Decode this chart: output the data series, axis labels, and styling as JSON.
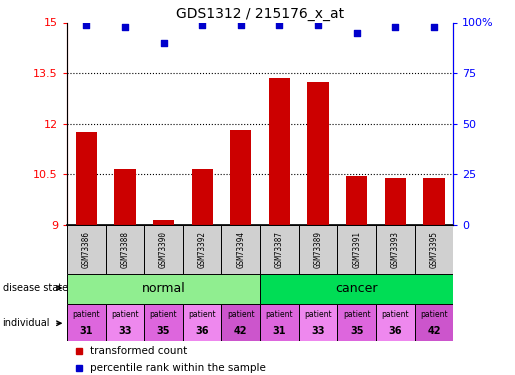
{
  "title": "GDS1312 / 215176_x_at",
  "samples": [
    "GSM73386",
    "GSM73388",
    "GSM73390",
    "GSM73392",
    "GSM73394",
    "GSM73387",
    "GSM73389",
    "GSM73391",
    "GSM73393",
    "GSM73395"
  ],
  "transformed_count": [
    11.75,
    10.65,
    9.15,
    10.65,
    11.8,
    13.35,
    13.25,
    10.45,
    10.4,
    10.4
  ],
  "percentile_rank": [
    99,
    98,
    90,
    99,
    99,
    99,
    99,
    95,
    98,
    98
  ],
  "ylim_left": [
    9,
    15
  ],
  "ylim_right": [
    0,
    100
  ],
  "yticks_left": [
    9,
    10.5,
    12,
    13.5,
    15
  ],
  "yticks_right": [
    0,
    25,
    50,
    75,
    100
  ],
  "bar_color": "#cc0000",
  "dot_color": "#0000cc",
  "disease_state_colors": [
    "#90ee90",
    "#00dd55"
  ],
  "individual_colors": [
    "#dd66dd",
    "#ee88ee",
    "#dd66dd",
    "#ee88ee",
    "#cc55cc",
    "#dd66dd",
    "#ee88ee",
    "#dd66dd",
    "#ee88ee",
    "#cc55cc"
  ],
  "individual_labels_top": [
    "patient",
    "patient",
    "patient",
    "patient",
    "patient",
    "patient",
    "patient",
    "patient",
    "patient",
    "patient"
  ],
  "individual_labels_bot": [
    "31",
    "33",
    "35",
    "36",
    "42",
    "31",
    "33",
    "35",
    "36",
    "42"
  ],
  "legend_red_label": "transformed count",
  "legend_blue_label": "percentile rank within the sample",
  "row_label_disease": "disease state",
  "row_label_individual": "individual"
}
